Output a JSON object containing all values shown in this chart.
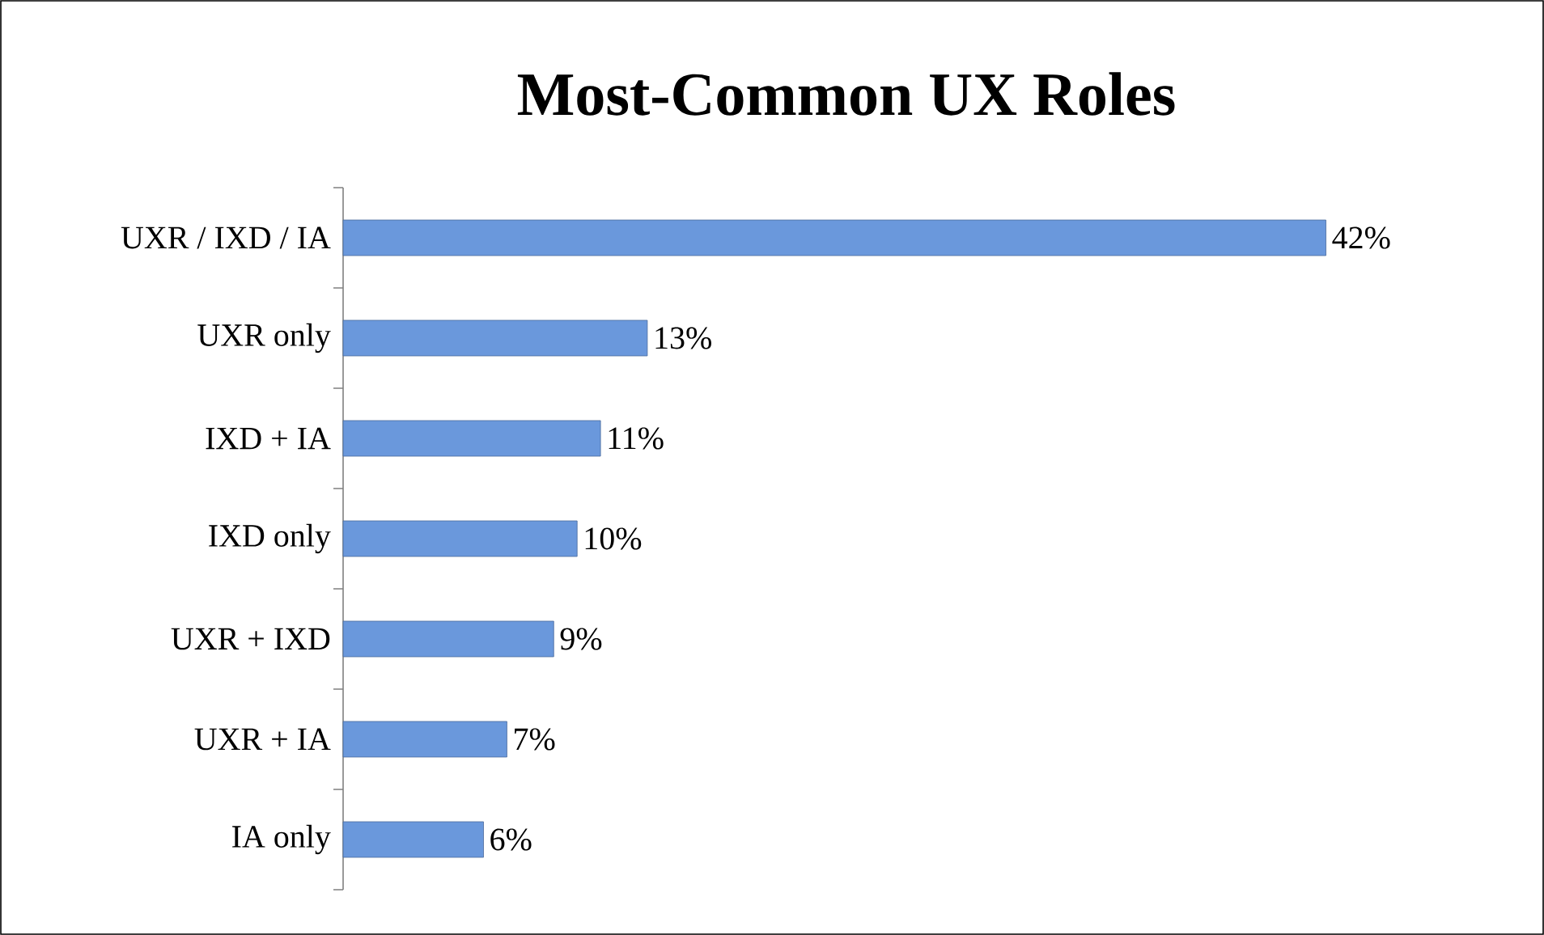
{
  "chart_data": {
    "type": "bar",
    "orientation": "horizontal",
    "title": "Most-Common UX Roles",
    "categories": [
      "UXR / IXD / IA",
      "UXR only",
      "IXD + IA",
      "IXD only",
      "UXR + IXD",
      "UXR + IA",
      "IA only"
    ],
    "values": [
      42,
      13,
      11,
      10,
      9,
      7,
      6
    ],
    "value_labels": [
      "42%",
      "13%",
      "11%",
      "10%",
      "9%",
      "7%",
      "6%"
    ],
    "color": "#6a98dc"
  }
}
